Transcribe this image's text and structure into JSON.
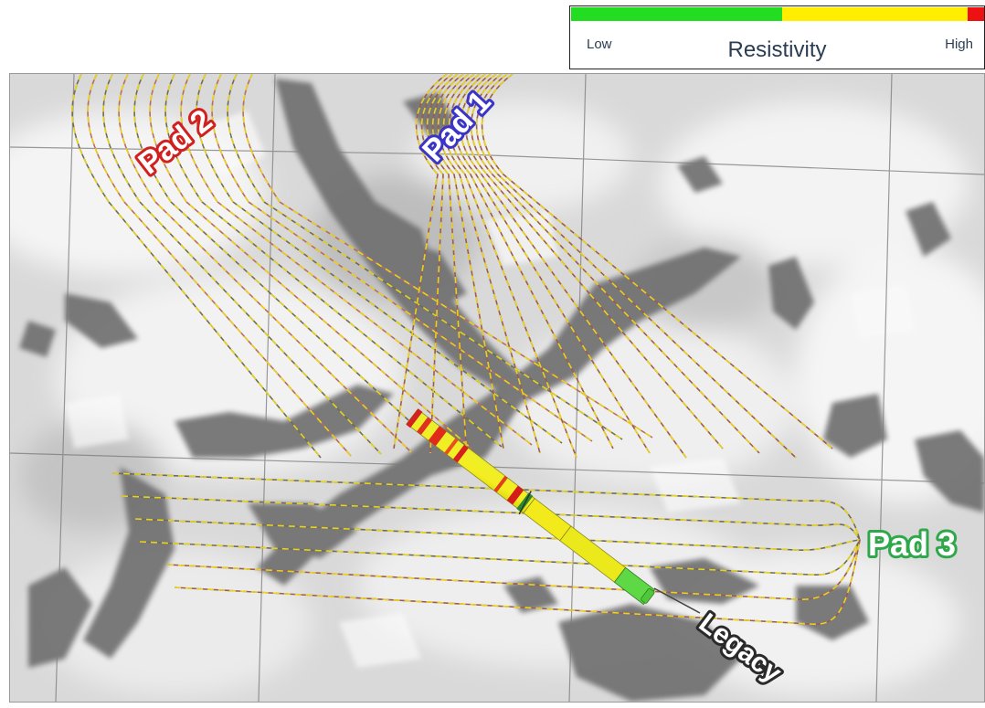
{
  "legend": {
    "title": "Resistivity",
    "low_label": "Low",
    "high_label": "High",
    "segments": [
      {
        "color": "#22dd22",
        "fraction": 0.51
      },
      {
        "color": "#ffee00",
        "fraction": 0.45
      },
      {
        "color": "#ee1111",
        "fraction": 0.04
      }
    ]
  },
  "map": {
    "pads": [
      {
        "id": "pad1",
        "label": "Pad 1",
        "outline_color": "#3a34c8"
      },
      {
        "id": "pad2",
        "label": "Pad 2",
        "outline_color": "#d02020"
      },
      {
        "id": "pad3",
        "label": "Pad 3",
        "outline_color": "#2ea84a"
      }
    ],
    "legacy_label": "Legacy",
    "well_colors": {
      "dash": "#e8d21a",
      "base": "#6b6b60"
    }
  }
}
